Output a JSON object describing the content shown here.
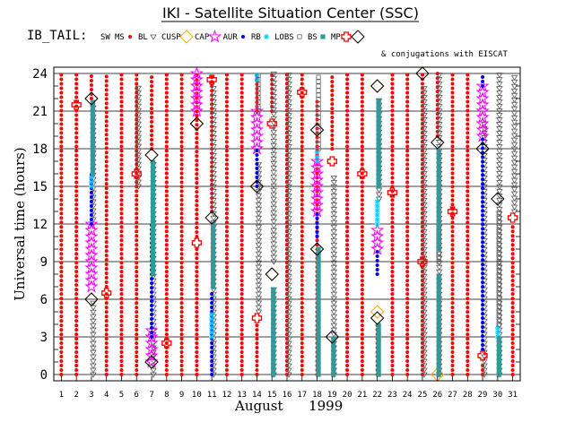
{
  "header": {
    "title": "IKI - Satellite Situation Center (SSC)",
    "dataset_label": "IB_TAIL:",
    "conjugation_note": "& conjugations with EISCAT"
  },
  "legend": [
    {
      "label": "SW",
      "marker": "none",
      "color": "#000000"
    },
    {
      "label": "MS",
      "marker": "dot",
      "color": "#ff0000"
    },
    {
      "label": "BL",
      "marker": "triangle",
      "color": "#555555"
    },
    {
      "label": "CUSP",
      "marker": "diamond",
      "color": "#ffaa00"
    },
    {
      "label": "CAP",
      "marker": "star",
      "color": "#ff00ff"
    },
    {
      "label": "AUR",
      "marker": "dot",
      "color": "#0000ff"
    },
    {
      "label": "RB",
      "marker": "asterisk",
      "color": "#00ccff"
    },
    {
      "label": "LOBS",
      "marker": "square",
      "color": "#666666"
    },
    {
      "label": "BS",
      "marker": "square",
      "color": "#339999"
    },
    {
      "label": "MP",
      "marker": "cross",
      "color": "#ff0000"
    },
    {
      "label": "",
      "marker": "diamond",
      "color": "#000000"
    }
  ],
  "chart_data": {
    "type": "scatter",
    "title": "IKI - Satellite Situation Center (SSC)",
    "xlabel": "August      1999",
    "ylabel": "Universal time (hours)",
    "xlim": [
      0.5,
      31.5
    ],
    "ylim": [
      -0.5,
      24.5
    ],
    "x_ticks": [
      1,
      2,
      3,
      4,
      5,
      6,
      7,
      8,
      9,
      10,
      11,
      12,
      13,
      14,
      15,
      16,
      17,
      18,
      19,
      20,
      21,
      22,
      23,
      24,
      25,
      26,
      27,
      28,
      29,
      30,
      31
    ],
    "y_ticks": [
      0,
      3,
      6,
      9,
      12,
      15,
      18,
      21,
      24
    ],
    "grid": true,
    "series": [
      {
        "name": "MS",
        "color": "#ff0000",
        "marker": "dot",
        "segments": [
          [
            1,
            0,
            24
          ],
          [
            2,
            0,
            24
          ],
          [
            3,
            22,
            24
          ],
          [
            4,
            0,
            6.5
          ],
          [
            4,
            7,
            24
          ],
          [
            5,
            0,
            24
          ],
          [
            6,
            0,
            24
          ],
          [
            7,
            18,
            24
          ],
          [
            8,
            0,
            24
          ],
          [
            9,
            0,
            24
          ],
          [
            10,
            0,
            10
          ],
          [
            10,
            11,
            24
          ],
          [
            11,
            13,
            24
          ],
          [
            12,
            0,
            24
          ],
          [
            13,
            0,
            24
          ],
          [
            14,
            21,
            24
          ],
          [
            14,
            0,
            4
          ],
          [
            15,
            21,
            24
          ],
          [
            16,
            0,
            24
          ],
          [
            17,
            0,
            24
          ],
          [
            18,
            0,
            22
          ],
          [
            19,
            18,
            24
          ],
          [
            20,
            0,
            24
          ],
          [
            21,
            0,
            24
          ],
          [
            22,
            0,
            4
          ],
          [
            23,
            0,
            24
          ],
          [
            24,
            0,
            24
          ],
          [
            25,
            0,
            24
          ],
          [
            26,
            19,
            24
          ],
          [
            27,
            0,
            24
          ],
          [
            28,
            0,
            24
          ],
          [
            29,
            0,
            1
          ],
          [
            31,
            0,
            12
          ]
        ]
      },
      {
        "name": "BL",
        "color": "#555555",
        "marker": "triangle",
        "segments": [
          [
            3,
            0,
            6
          ],
          [
            3,
            12,
            21.5
          ],
          [
            6,
            15,
            23
          ],
          [
            7,
            0,
            17
          ],
          [
            11,
            0,
            23
          ],
          [
            14,
            5,
            17
          ],
          [
            15,
            0,
            7
          ],
          [
            15,
            9,
            24
          ],
          [
            16,
            0,
            24
          ],
          [
            19,
            0,
            16
          ],
          [
            22,
            14,
            22
          ],
          [
            25,
            0,
            23
          ],
          [
            26,
            0,
            24
          ],
          [
            29,
            0,
            20
          ],
          [
            30,
            0,
            24
          ],
          [
            31,
            13,
            24
          ]
        ]
      },
      {
        "name": "CUSP",
        "color": "#ffaa00",
        "marker": "diamond",
        "points": [
          [
            3,
            6
          ],
          [
            3,
            22
          ],
          [
            7,
            1
          ],
          [
            7,
            17.5
          ],
          [
            10,
            20
          ],
          [
            14,
            15
          ],
          [
            15,
            8
          ],
          [
            18,
            10
          ],
          [
            22,
            5
          ],
          [
            22,
            23
          ],
          [
            25,
            24
          ],
          [
            26,
            0
          ],
          [
            29,
            18
          ]
        ]
      },
      {
        "name": "CAP",
        "color": "#ff00ff",
        "marker": "star",
        "segments": [
          [
            3,
            7,
            12
          ],
          [
            7,
            1,
            3.5
          ],
          [
            10,
            21,
            24
          ],
          [
            14,
            18,
            21
          ],
          [
            18,
            13,
            17
          ],
          [
            22,
            10,
            11.5
          ],
          [
            29,
            19,
            23
          ]
        ]
      },
      {
        "name": "AUR",
        "color": "#0000ff",
        "marker": "dot",
        "segments": [
          [
            3,
            12,
            16
          ],
          [
            7,
            3,
            12
          ],
          [
            11,
            0,
            6.5
          ],
          [
            14,
            15,
            18
          ],
          [
            18,
            11,
            13
          ],
          [
            22,
            8,
            10
          ],
          [
            29,
            2,
            19
          ],
          [
            29,
            23,
            24
          ]
        ]
      },
      {
        "name": "RB",
        "color": "#00ccff",
        "marker": "asterisk",
        "segments": [
          [
            3,
            15,
            16
          ],
          [
            11,
            3,
            5
          ],
          [
            14,
            23.5,
            24
          ],
          [
            18,
            17,
            18
          ],
          [
            22,
            12,
            14
          ],
          [
            30,
            3,
            4
          ]
        ]
      },
      {
        "name": "LOBS",
        "color": "#666666",
        "marker": "square",
        "segments": [
          [
            14,
            21,
            24
          ],
          [
            18,
            18,
            24
          ],
          [
            26,
            9,
            12
          ],
          [
            30,
            4,
            13
          ]
        ]
      },
      {
        "name": "BS",
        "color": "#339999",
        "marker": "square",
        "segments": [
          [
            3,
            16,
            22
          ],
          [
            7,
            8,
            17
          ],
          [
            11,
            7,
            12
          ],
          [
            15,
            0,
            7
          ],
          [
            18,
            0,
            10
          ],
          [
            19,
            0,
            3
          ],
          [
            22,
            0,
            4
          ],
          [
            22,
            15,
            22
          ],
          [
            26,
            0,
            8
          ],
          [
            26,
            10,
            18
          ],
          [
            30,
            0,
            3
          ]
        ]
      },
      {
        "name": "MP",
        "color": "#ff0000",
        "marker": "cross",
        "points": [
          [
            2,
            21.5
          ],
          [
            4,
            6.5
          ],
          [
            6,
            16
          ],
          [
            8,
            2.5
          ],
          [
            10,
            10.5
          ],
          [
            11,
            23.5
          ],
          [
            14,
            4.5
          ],
          [
            15,
            20
          ],
          [
            17,
            22.5
          ],
          [
            19,
            17
          ],
          [
            21,
            16
          ],
          [
            23,
            14.5
          ],
          [
            25,
            9
          ],
          [
            27,
            13
          ],
          [
            29,
            1.5
          ],
          [
            31,
            12.5
          ]
        ]
      },
      {
        "name": "",
        "color": "#000000",
        "marker": "diamond",
        "points": [
          [
            3,
            22
          ],
          [
            3,
            6
          ],
          [
            7,
            17.5
          ],
          [
            7,
            1
          ],
          [
            10,
            20
          ],
          [
            11,
            12.5
          ],
          [
            14,
            15
          ],
          [
            15,
            8
          ],
          [
            18,
            10
          ],
          [
            18,
            19.5
          ],
          [
            19,
            3
          ],
          [
            22,
            23
          ],
          [
            22,
            4.5
          ],
          [
            25,
            24
          ],
          [
            26,
            18.5
          ],
          [
            29,
            18
          ],
          [
            30,
            14
          ]
        ]
      }
    ]
  }
}
